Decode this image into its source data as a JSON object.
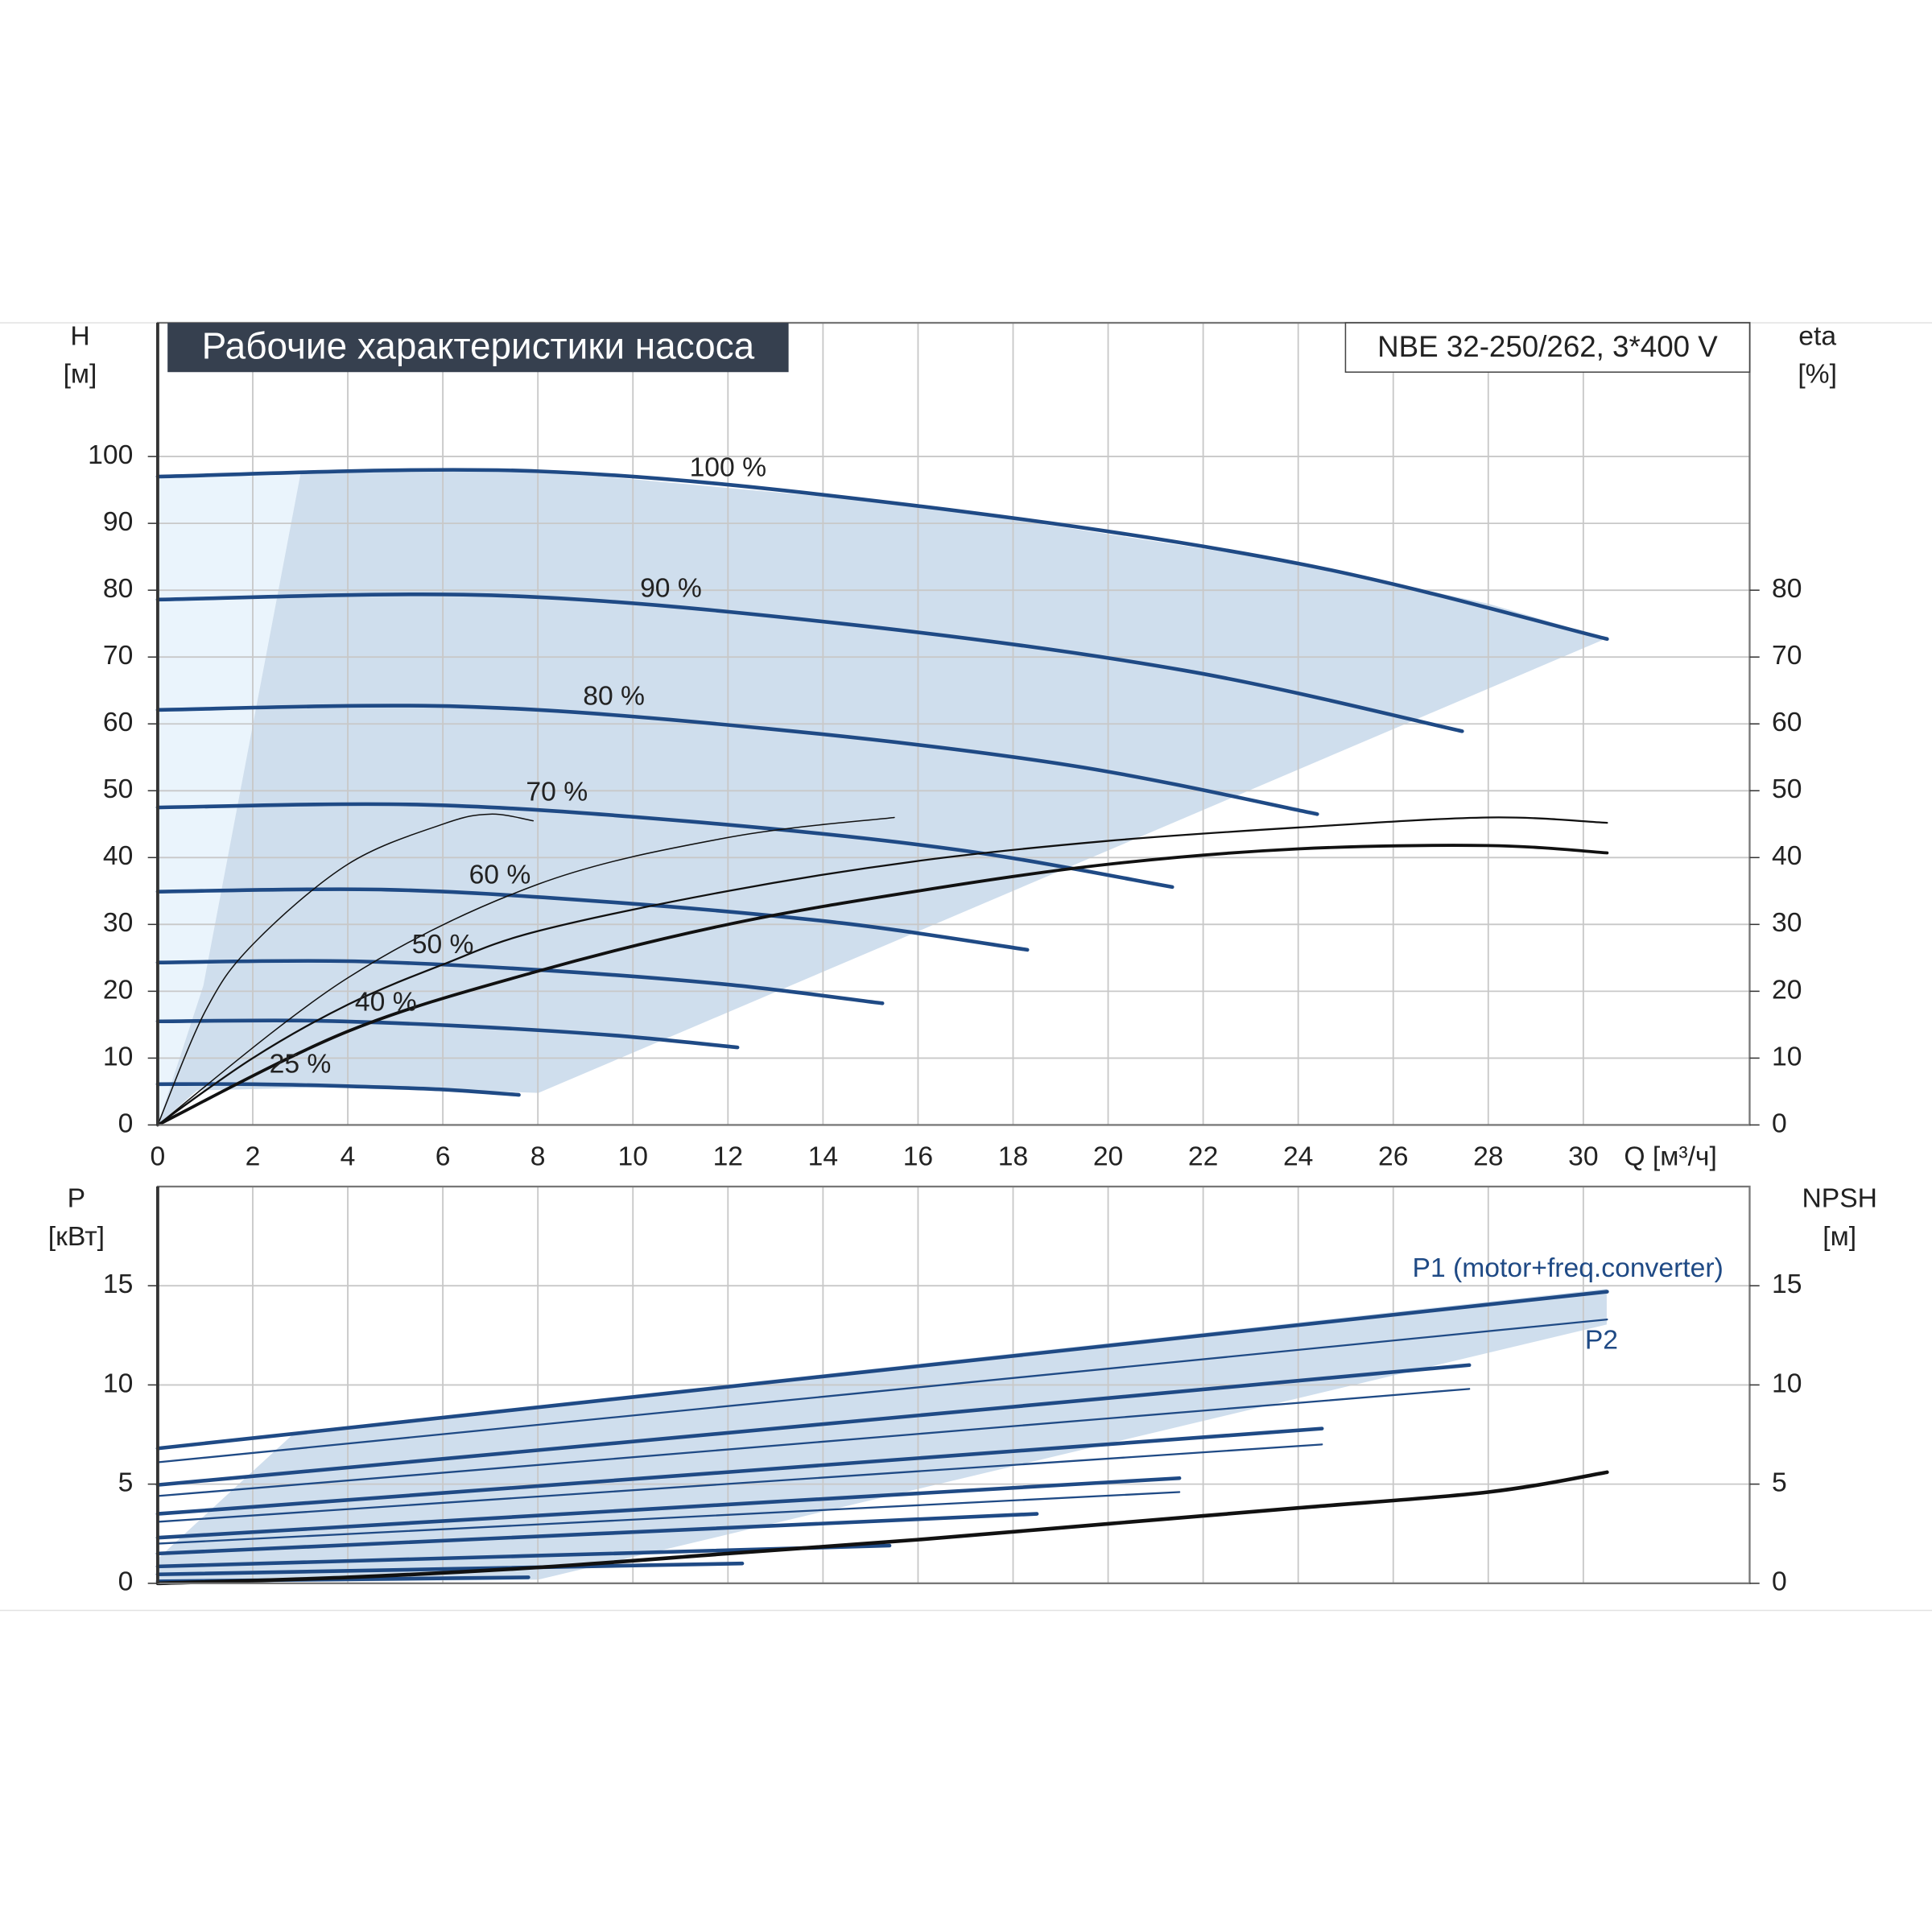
{
  "chart_data": [
    {
      "type": "line",
      "title": "Рабочие характеристики насоса",
      "model": "NBE 32-250/262, 3*400 V",
      "ylabel": "H",
      "yunit": "[м]",
      "y2label": "eta",
      "y2unit": "[%]",
      "xlabel": "Q [м³/ч]",
      "xlim": [
        0,
        33.5
      ],
      "xticks": [
        0,
        2,
        4,
        6,
        8,
        10,
        12,
        14,
        16,
        18,
        20,
        22,
        24,
        26,
        28,
        30
      ],
      "ylim": [
        0,
        120
      ],
      "yticks": [
        0,
        10,
        20,
        30,
        40,
        50,
        60,
        70,
        80,
        90,
        100
      ],
      "y2lim": [
        0,
        120
      ],
      "y2ticks": [
        0,
        10,
        20,
        30,
        40,
        50,
        60,
        70,
        80
      ],
      "grid": true,
      "series": [
        {
          "label": "100 %",
          "color": "#1f4a85",
          "width": 3,
          "x": [
            0,
            8,
            16,
            24,
            30.5
          ],
          "values": [
            97,
            97.8,
            92.6,
            84,
            72.7
          ]
        },
        {
          "label": "90 %",
          "color": "#1f4a85",
          "width": 3,
          "x": [
            0,
            7.2,
            14.4,
            21.6,
            27.45
          ],
          "values": [
            78.6,
            79.2,
            75,
            68,
            58.9
          ]
        },
        {
          "label": "80 %",
          "color": "#1f4a85",
          "width": 3,
          "x": [
            0,
            6.4,
            12.8,
            19.2,
            24.4
          ],
          "values": [
            62.1,
            62.6,
            59.3,
            53.8,
            46.5
          ]
        },
        {
          "label": "70 %",
          "color": "#1f4a85",
          "width": 3,
          "x": [
            0,
            5.6,
            11.2,
            16.8,
            21.35
          ],
          "values": [
            47.5,
            47.9,
            45.4,
            41.2,
            35.6
          ]
        },
        {
          "label": "60 %",
          "color": "#1f4a85",
          "width": 3,
          "x": [
            0,
            4.8,
            9.6,
            14.4,
            18.3
          ],
          "values": [
            34.9,
            35.2,
            33.3,
            30.2,
            26.2
          ]
        },
        {
          "label": "50 %",
          "color": "#1f4a85",
          "width": 3,
          "x": [
            0,
            4,
            8,
            12,
            15.25
          ],
          "values": [
            24.3,
            24.5,
            23.2,
            21,
            18.2
          ]
        },
        {
          "label": "40 %",
          "color": "#1f4a85",
          "width": 3,
          "x": [
            0,
            3.2,
            6.4,
            9.6,
            12.2
          ],
          "values": [
            15.5,
            15.6,
            14.8,
            13.4,
            11.6
          ]
        },
        {
          "label": "25 %",
          "color": "#1f4a85",
          "width": 3,
          "x": [
            0,
            2,
            4,
            6,
            7.6
          ],
          "values": [
            6.1,
            6.1,
            5.8,
            5.3,
            4.5
          ]
        },
        {
          "color": "#111111",
          "width": 1.5,
          "axis": "y2",
          "x": [
            0,
            2,
            4,
            6,
            8,
            12,
            16,
            20,
            24,
            28,
            30.5
          ],
          "values": [
            0,
            10,
            18,
            24,
            29,
            35,
            39.5,
            42.5,
            44.5,
            46,
            45.2
          ]
        },
        {
          "color": "#111111",
          "width": 2.5,
          "axis": "y2",
          "x": [
            0,
            4,
            8,
            12,
            16,
            20,
            24,
            28,
            30.5
          ],
          "values": [
            0,
            14,
            23,
            30,
            35,
            39,
            41.3,
            41.8,
            40.7
          ]
        },
        {
          "color": "#111111",
          "width": 1,
          "axis": "y2",
          "x": [
            0,
            1,
            2,
            4,
            6,
            7,
            7.9
          ],
          "values": [
            0,
            17,
            27,
            39,
            45,
            46.5,
            45.5
          ]
        },
        {
          "color": "#111111",
          "width": 1,
          "axis": "y2",
          "x": [
            0,
            4,
            8,
            12,
            15.5
          ],
          "values": [
            0,
            22,
            36,
            43,
            46
          ]
        }
      ]
    },
    {
      "type": "line",
      "ylabel": "P",
      "yunit": "[кВт]",
      "y2label": "NPSH",
      "y2unit": "[м]",
      "xlim": [
        0,
        33.5
      ],
      "ylim": [
        0,
        20
      ],
      "yticks": [
        0,
        5,
        10,
        15
      ],
      "y2lim": [
        0,
        20
      ],
      "y2ticks": [
        0,
        5,
        10,
        15
      ],
      "grid": true,
      "series": [
        {
          "name": "P1 (motor+freq.converter)",
          "color": "#1f4a85",
          "width": 3,
          "x": [
            0,
            30.5
          ],
          "values": [
            6.8,
            14.7
          ]
        },
        {
          "color": "#1f4a85",
          "width": 3,
          "x": [
            0,
            27.6
          ],
          "values": [
            4.96,
            11
          ]
        },
        {
          "color": "#1f4a85",
          "width": 3,
          "x": [
            0,
            24.5
          ],
          "values": [
            3.5,
            7.8
          ]
        },
        {
          "color": "#1f4a85",
          "width": 3,
          "x": [
            0,
            21.5
          ],
          "values": [
            2.3,
            5.3
          ]
        },
        {
          "color": "#1f4a85",
          "width": 3,
          "x": [
            0,
            18.5
          ],
          "values": [
            1.5,
            3.5
          ]
        },
        {
          "color": "#1f4a85",
          "width": 3,
          "x": [
            0,
            15.4
          ],
          "values": [
            0.85,
            1.9
          ]
        },
        {
          "color": "#1f4a85",
          "width": 3,
          "x": [
            0,
            12.3
          ],
          "values": [
            0.45,
            1.0
          ]
        },
        {
          "color": "#1f4a85",
          "width": 3,
          "x": [
            0,
            7.8
          ],
          "values": [
            0.1,
            0.3
          ]
        },
        {
          "name": "P2",
          "color": "#1f4a85",
          "width": 1.5,
          "x": [
            0,
            30.5
          ],
          "values": [
            6.1,
            13.3
          ]
        },
        {
          "color": "#1f4a85",
          "width": 1.5,
          "x": [
            0,
            27.6
          ],
          "values": [
            4.4,
            9.8
          ]
        },
        {
          "color": "#1f4a85",
          "width": 1.5,
          "x": [
            0,
            24.5
          ],
          "values": [
            3.1,
            7.0
          ]
        },
        {
          "color": "#1f4a85",
          "width": 1.5,
          "x": [
            0,
            21.5
          ],
          "values": [
            2.0,
            4.6
          ]
        },
        {
          "color": "#111111",
          "width": 3,
          "axis": "y2",
          "x": [
            0,
            4,
            8,
            12,
            16,
            20,
            24,
            28,
            30.5
          ],
          "values": [
            0,
            0.3,
            0.8,
            1.5,
            2.2,
            3,
            3.8,
            4.6,
            5.6
          ]
        }
      ]
    }
  ]
}
